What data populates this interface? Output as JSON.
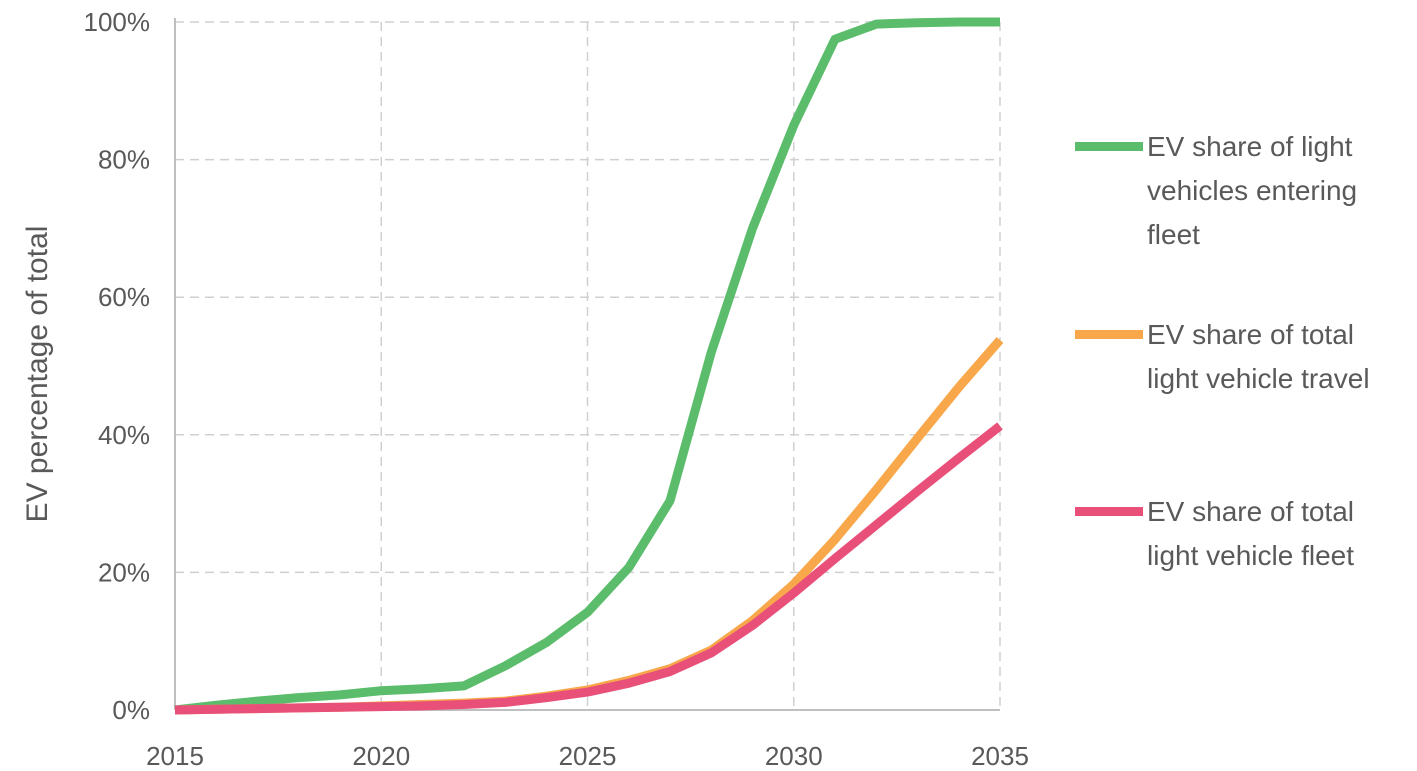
{
  "chart_data": {
    "type": "line",
    "ylabel": "EV percentage of total",
    "xlim": [
      2015,
      2035
    ],
    "ylim": [
      0,
      100
    ],
    "x_ticks": [
      2015,
      2020,
      2025,
      2030,
      2035
    ],
    "y_ticks": [
      0,
      20,
      40,
      60,
      80,
      100
    ],
    "y_tick_labels": [
      "0%",
      "20%",
      "40%",
      "60%",
      "80%",
      "100%"
    ],
    "grid": true,
    "legend_position": "right",
    "x": [
      2015,
      2016,
      2017,
      2018,
      2019,
      2020,
      2021,
      2022,
      2023,
      2024,
      2025,
      2026,
      2027,
      2028,
      2029,
      2030,
      2031,
      2032,
      2033,
      2034,
      2035
    ],
    "series": [
      {
        "name": "EV share of light vehicles entering fleet",
        "color": "#5bbd6b",
        "values": [
          0,
          0.7,
          1.3,
          1.8,
          2.2,
          2.8,
          3.1,
          3.5,
          6.4,
          9.8,
          14.2,
          20.7,
          30.4,
          52.0,
          70.0,
          85.0,
          97.5,
          99.7,
          99.9,
          100,
          100
        ]
      },
      {
        "name": "EV share of total light vehicle travel",
        "color": "#f8a84b",
        "values": [
          0,
          0.1,
          0.2,
          0.3,
          0.4,
          0.6,
          0.8,
          1.0,
          1.3,
          2.0,
          2.9,
          4.3,
          6.0,
          8.7,
          13.0,
          18.3,
          24.8,
          32.0,
          39.5,
          46.9,
          53.8
        ]
      },
      {
        "name": "EV share of total light vehicle fleet",
        "color": "#e8507a",
        "values": [
          0,
          0.1,
          0.2,
          0.3,
          0.4,
          0.5,
          0.6,
          0.8,
          1.1,
          1.8,
          2.6,
          3.9,
          5.6,
          8.3,
          12.3,
          17.0,
          22.0,
          26.9,
          31.8,
          36.6,
          41.3
        ]
      }
    ]
  }
}
